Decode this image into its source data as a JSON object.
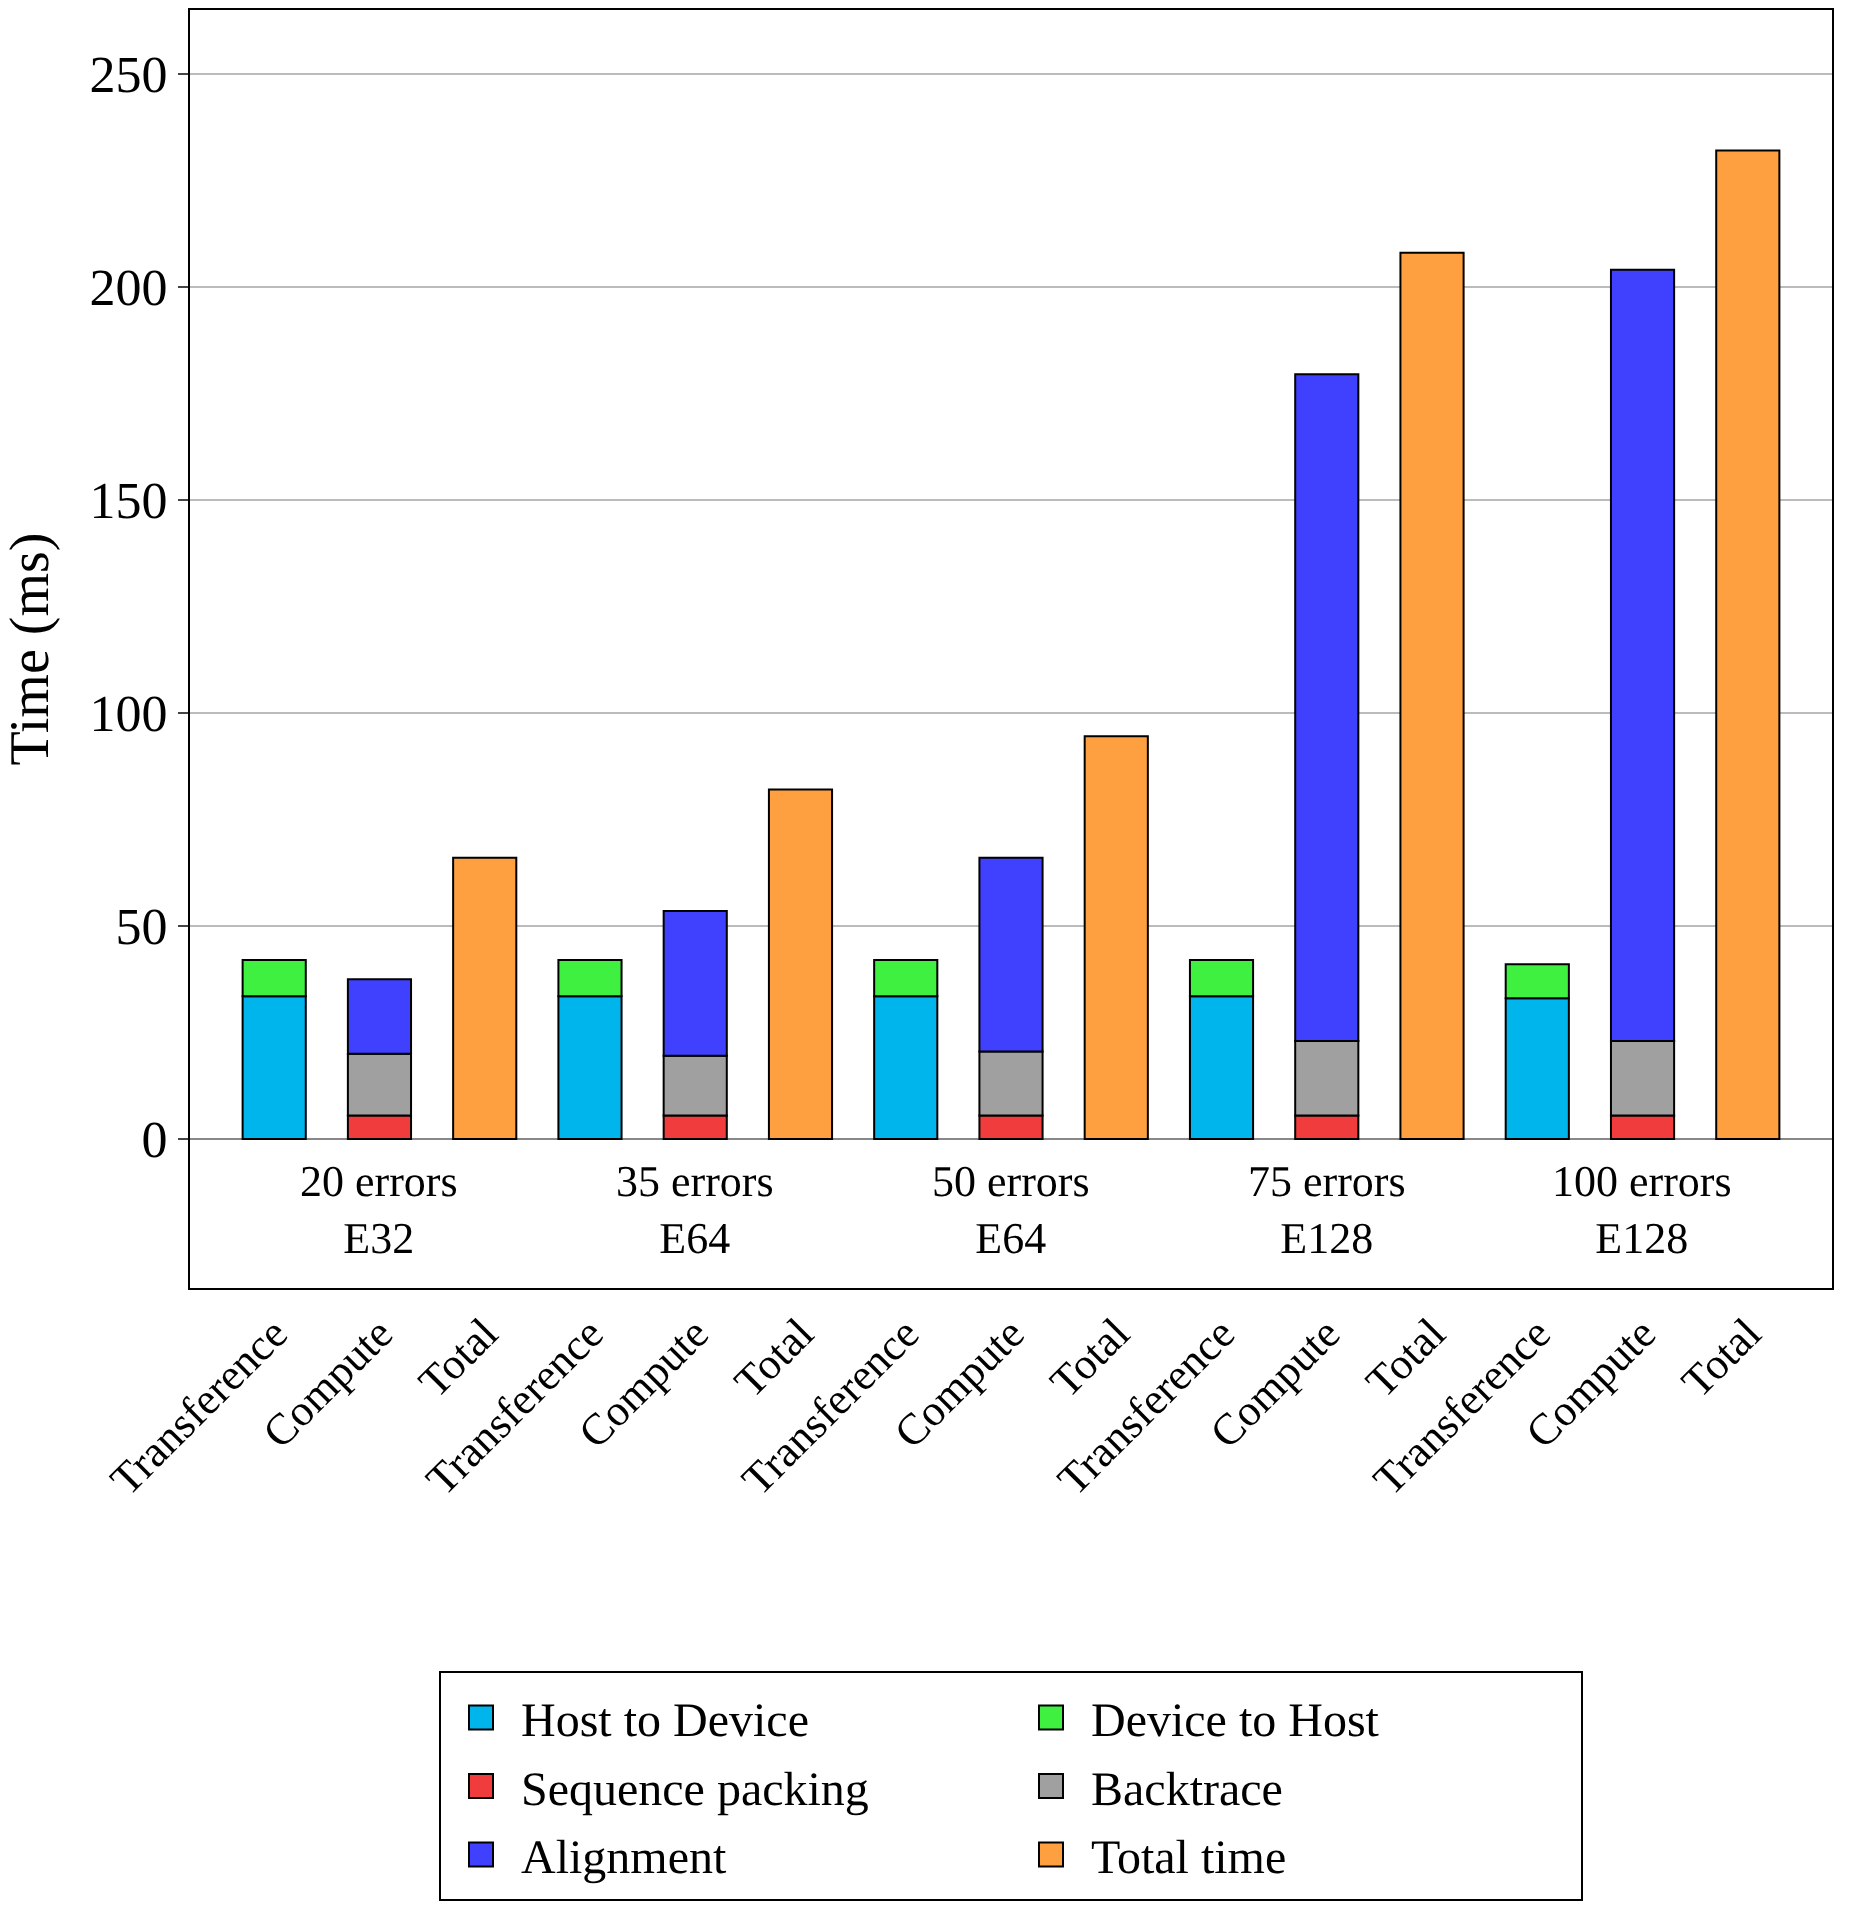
{
  "chart_data": {
    "type": "bar",
    "stacked": true,
    "ylabel": "Time (ms)",
    "categories": [
      "Transference",
      "Compute",
      "Total",
      "Transference",
      "Compute",
      "Total",
      "Transference",
      "Compute",
      "Total",
      "Transference",
      "Compute",
      "Total",
      "Transference",
      "Compute",
      "Total"
    ],
    "series": [
      {
        "name": "Host to Device",
        "color": "#00b4ec",
        "values": [
          33.5,
          null,
          null,
          33.5,
          null,
          null,
          33.5,
          null,
          null,
          33.5,
          null,
          null,
          33,
          null,
          null
        ]
      },
      {
        "name": "Device to Host",
        "color": "#40f040",
        "values": [
          8.5,
          null,
          null,
          8.5,
          null,
          null,
          8.5,
          null,
          null,
          8.5,
          null,
          null,
          8,
          null,
          null
        ]
      },
      {
        "name": "Sequence packing",
        "color": "#f03c3c",
        "values": [
          null,
          5.5,
          null,
          null,
          5.5,
          null,
          null,
          5.5,
          null,
          null,
          5.5,
          null,
          null,
          5.5,
          null
        ]
      },
      {
        "name": "Backtrace",
        "color": "#a0a0a0",
        "values": [
          null,
          14.5,
          null,
          null,
          14,
          null,
          null,
          15,
          null,
          null,
          17.5,
          null,
          null,
          17.5,
          null
        ]
      },
      {
        "name": "Alignment",
        "color": "#4040ff",
        "values": [
          null,
          17.5,
          null,
          null,
          34,
          null,
          null,
          45.5,
          null,
          null,
          156.5,
          null,
          null,
          181,
          null
        ]
      },
      {
        "name": "Total time",
        "color": "#ffa040",
        "values": [
          null,
          null,
          66,
          null,
          null,
          82,
          null,
          null,
          94.5,
          null,
          null,
          208,
          null,
          null,
          232
        ]
      }
    ],
    "annotations": [
      "20 errors\nE32",
      "35 errors\nE64",
      "50 errors\nE64",
      "75 errors\nE128",
      "100 errors\nE128"
    ],
    "ylim": [
      -35,
      265
    ],
    "yticks": [
      0,
      50,
      100,
      150,
      200,
      250
    ],
    "grid": "y",
    "legend": "bottom"
  }
}
